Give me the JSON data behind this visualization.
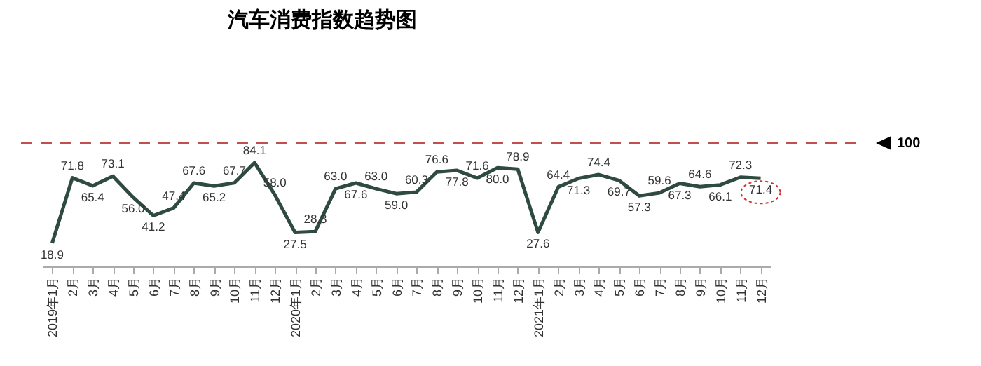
{
  "chart_data": {
    "type": "line",
    "title": "汽车消费指数趋势图",
    "categories": [
      "2019年1月",
      "2月",
      "3月",
      "4月",
      "5月",
      "6月",
      "7月",
      "8月",
      "9月",
      "10月",
      "11月",
      "12月",
      "2020年1月",
      "2月",
      "3月",
      "4月",
      "5月",
      "6月",
      "7月",
      "8月",
      "9月",
      "10月",
      "11月",
      "12月",
      "2021年1月",
      "2月",
      "3月",
      "4月",
      "5月",
      "6月",
      "7月",
      "8月",
      "9月",
      "10月",
      "11月",
      "12月"
    ],
    "series": [
      {
        "color": "#2f4a3f",
        "values": [
          18.9,
          71.8,
          65.4,
          73.1,
          56.0,
          41.2,
          47.4,
          67.6,
          65.2,
          67.7,
          84.1,
          58.0,
          27.5,
          28.3,
          63.0,
          67.6,
          63.0,
          59.0,
          60.3,
          76.6,
          77.8,
          71.6,
          80.0,
          78.9,
          27.6,
          64.4,
          71.3,
          74.4,
          69.7,
          57.3,
          59.6,
          67.3,
          64.6,
          66.1,
          72.3,
          71.4
        ],
        "value_labels": [
          "18.9",
          "71.8",
          "65.4",
          "73.1",
          "56.0",
          "41.2",
          "47.4",
          "67.6",
          "65.2",
          "67.7",
          "84.1",
          "58.0",
          "27.5",
          "28.3",
          "63.0",
          "67.6",
          "63.0",
          "59.0",
          "60.3",
          "76.6",
          "77.8",
          "71.6",
          "80.0",
          "78.9",
          "27.6",
          "64.4",
          "71.3",
          "74.4",
          "69.7",
          "57.3",
          "59.6",
          "67.3",
          "64.6",
          "66.1",
          "72.3",
          "71.4"
        ]
      }
    ],
    "ref_lines": [
      {
        "axis": "y",
        "value": 100,
        "label": "100",
        "color": "#c0504d",
        "line_style": "dashed"
      }
    ],
    "tick_labels": "x",
    "line_style": "solid"
  }
}
